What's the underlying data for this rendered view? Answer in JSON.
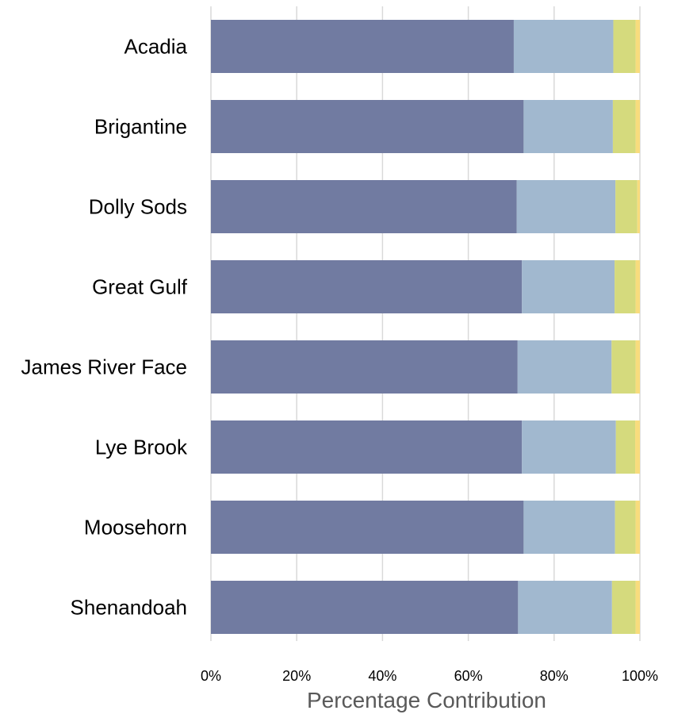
{
  "chart_data": {
    "type": "bar",
    "orientation": "horizontal",
    "stacked": "percent",
    "title": "",
    "xlabel": "Percentage Contribution",
    "ylabel": "",
    "xlim": [
      0,
      100
    ],
    "x_ticks": [
      "0%",
      "20%",
      "40%",
      "60%",
      "80%",
      "100%"
    ],
    "grid": "vertical",
    "legend": "none",
    "categories": [
      "Acadia",
      "Brigantine",
      "Dolly Sods",
      "Great Gulf",
      "James River Face",
      "Lye Brook",
      "Moosehorn",
      "Shenandoah"
    ],
    "series": [
      {
        "color": "#717ba1",
        "values": [
          70.6,
          72.9,
          71.3,
          72.5,
          71.5,
          72.5,
          72.9,
          71.6
        ]
      },
      {
        "color": "#a1b8cf",
        "values": [
          23.2,
          20.8,
          23.0,
          21.6,
          21.9,
          21.9,
          21.3,
          21.9
        ]
      },
      {
        "color": "#d5da7d",
        "values": [
          5.2,
          5.3,
          5.1,
          4.9,
          5.6,
          4.5,
          4.8,
          5.5
        ]
      },
      {
        "color": "#f8dc7d",
        "values": [
          1.0,
          1.0,
          0.6,
          1.0,
          1.0,
          1.1,
          1.0,
          1.0
        ]
      }
    ]
  }
}
